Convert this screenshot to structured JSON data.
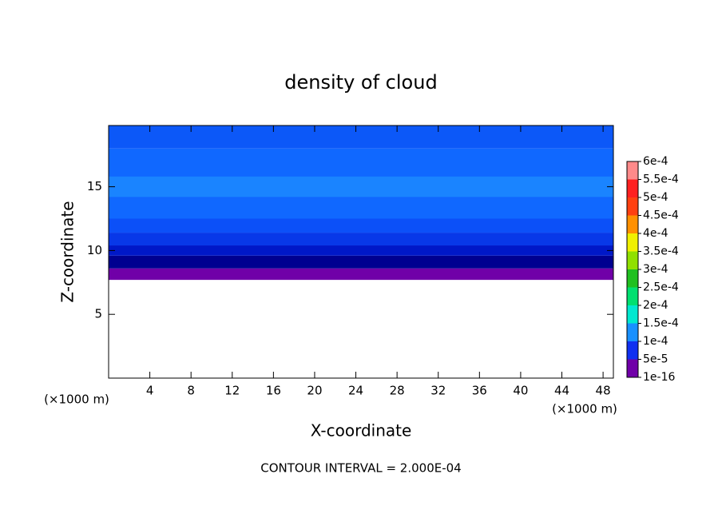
{
  "chart_data": {
    "type": "contour",
    "title": "density of cloud",
    "x_label": "X-coordinate",
    "y_label": "Z-coordinate",
    "x_unit_label": "(×1000 m)",
    "y_unit_label": "(×1000 m)",
    "footnote": "CONTOUR INTERVAL = 2.000E-04",
    "xlim": [
      0,
      49
    ],
    "xticks": [
      4,
      8,
      12,
      16,
      20,
      24,
      28,
      32,
      36,
      40,
      44,
      48
    ],
    "ylim": [
      0,
      19.8
    ],
    "yticks": [
      5,
      10,
      15
    ],
    "colorbar": {
      "levels": [
        {
          "value": 0.0006,
          "label": "6e-4"
        },
        {
          "value": 0.00055,
          "label": "5.5e-4"
        },
        {
          "value": 0.0005,
          "label": "5e-4"
        },
        {
          "value": 0.00045,
          "label": "4.5e-4"
        },
        {
          "value": 0.0004,
          "label": "4e-4"
        },
        {
          "value": 0.00035,
          "label": "3.5e-4"
        },
        {
          "value": 0.0003,
          "label": "3e-4"
        },
        {
          "value": 0.00025,
          "label": "2.5e-4"
        },
        {
          "value": 0.0002,
          "label": "2e-4"
        },
        {
          "value": 0.00015,
          "label": "1.5e-4"
        },
        {
          "value": 0.0001,
          "label": "1e-4"
        },
        {
          "value": 5e-05,
          "label": "5e-5"
        },
        {
          "value": 1e-16,
          "label": "1e-16"
        }
      ],
      "colors": [
        "#ff8a8a",
        "#ff2020",
        "#ff4010",
        "#ff9000",
        "#f0f000",
        "#90e000",
        "#20c020",
        "#00e070",
        "#00e8d0",
        "#1890ff",
        "#1030f0",
        "#000080",
        "#7000a8"
      ]
    },
    "field_layers": [
      {
        "z": [
          7.7,
          8.6
        ],
        "color": "#7000a8"
      },
      {
        "z": [
          8.6,
          9.6
        ],
        "color": "#000090"
      },
      {
        "z": [
          9.6,
          10.4
        ],
        "color": "#0018c8"
      },
      {
        "z": [
          10.4,
          11.4
        ],
        "color": "#0838e8"
      },
      {
        "z": [
          11.4,
          12.5
        ],
        "color": "#0c50f8"
      },
      {
        "z": [
          12.5,
          18.0
        ],
        "color": "#1068ff"
      },
      {
        "z": [
          14.2,
          15.8
        ],
        "color": "#1a84ff"
      },
      {
        "z": [
          18.0,
          19.8
        ],
        "color": "#0c58f8"
      }
    ]
  }
}
